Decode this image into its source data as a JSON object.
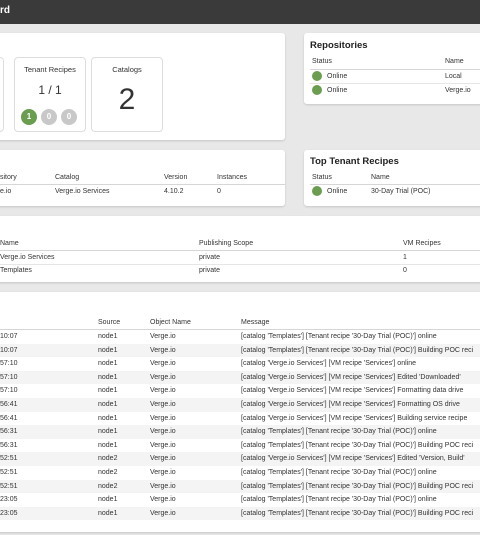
{
  "header": {
    "title": "rd"
  },
  "stats": [
    {
      "label": "Tenant Recipes",
      "value": "1 / 1",
      "badges": [
        "1",
        "0",
        "0"
      ]
    },
    {
      "label": "Catalogs",
      "value": "2"
    }
  ],
  "repositories": {
    "title": "Repositories",
    "columns": [
      "Status",
      "Name"
    ],
    "rows": [
      {
        "status": "Online",
        "name": "Local"
      },
      {
        "status": "Online",
        "name": "Verge.io"
      }
    ]
  },
  "top_tenant_recipes": {
    "title": "Top Tenant Recipes",
    "columns": [
      "Status",
      "Name"
    ],
    "rows": [
      {
        "status": "Online",
        "name": "30-Day Trial (POC)"
      }
    ]
  },
  "vm_recipes": {
    "columns": [
      "sitory",
      "Catalog",
      "Version",
      "Instances"
    ],
    "rows": [
      {
        "repository": "e.io",
        "catalog": "Verge.io Services",
        "version": "4.10.2",
        "instances": "0"
      }
    ]
  },
  "catalogs": {
    "columns": [
      "Name",
      "Publishing Scope",
      "VM Recipes"
    ],
    "rows": [
      {
        "name": "Verge.io Services",
        "scope": "private",
        "vm_recipes": "1"
      },
      {
        "name": "Templates",
        "scope": "private",
        "vm_recipes": "0"
      }
    ]
  },
  "logs": {
    "columns": [
      "Source",
      "Object Name",
      "Message"
    ],
    "rows": [
      {
        "time": "10:07",
        "source": "node1",
        "object": "Verge.io",
        "message": "[catalog 'Templates'] [Tenant recipe '30-Day Trial (POC)'] online"
      },
      {
        "time": "10:07",
        "source": "node1",
        "object": "Verge.io",
        "message": "[catalog 'Templates'] [Tenant recipe '30-Day Trial (POC)'] Building POC reci"
      },
      {
        "time": "57:10",
        "source": "node1",
        "object": "Verge.io",
        "message": "[catalog 'Verge.io Services'] [VM recipe 'Services'] online"
      },
      {
        "time": "57:10",
        "source": "node1",
        "object": "Verge.io",
        "message": "[catalog 'Verge.io Services'] [VM recipe 'Services'] Edited 'Downloaded'"
      },
      {
        "time": "57:10",
        "source": "node1",
        "object": "Verge.io",
        "message": "[catalog 'Verge.io Services'] [VM recipe 'Services'] Formatting data drive"
      },
      {
        "time": "56:41",
        "source": "node1",
        "object": "Verge.io",
        "message": "[catalog 'Verge.io Services'] [VM recipe 'Services'] Formatting OS drive"
      },
      {
        "time": "56:41",
        "source": "node1",
        "object": "Verge.io",
        "message": "[catalog 'Verge.io Services'] [VM recipe 'Services'] Building service recipe"
      },
      {
        "time": "56:31",
        "source": "node1",
        "object": "Verge.io",
        "message": "[catalog 'Templates'] [Tenant recipe '30-Day Trial (POC)'] online"
      },
      {
        "time": "56:31",
        "source": "node1",
        "object": "Verge.io",
        "message": "[catalog 'Templates'] [Tenant recipe '30-Day Trial (POC)'] Building POC reci"
      },
      {
        "time": "52:51",
        "source": "node2",
        "object": "Verge.io",
        "message": "[catalog 'Verge.io Services'] [VM recipe 'Services'] Edited 'Version, Build'"
      },
      {
        "time": "52:51",
        "source": "node2",
        "object": "Verge.io",
        "message": "[catalog 'Templates'] [Tenant recipe '30-Day Trial (POC)'] online"
      },
      {
        "time": "52:51",
        "source": "node2",
        "object": "Verge.io",
        "message": "[catalog 'Templates'] [Tenant recipe '30-Day Trial (POC)'] Building POC reci"
      },
      {
        "time": "23:05",
        "source": "node1",
        "object": "Verge.io",
        "message": "[catalog 'Templates'] [Tenant recipe '30-Day Trial (POC)'] online"
      },
      {
        "time": "23:05",
        "source": "node1",
        "object": "Verge.io",
        "message": "[catalog 'Templates'] [Tenant recipe '30-Day Trial (POC)'] Building POC reci"
      }
    ]
  }
}
